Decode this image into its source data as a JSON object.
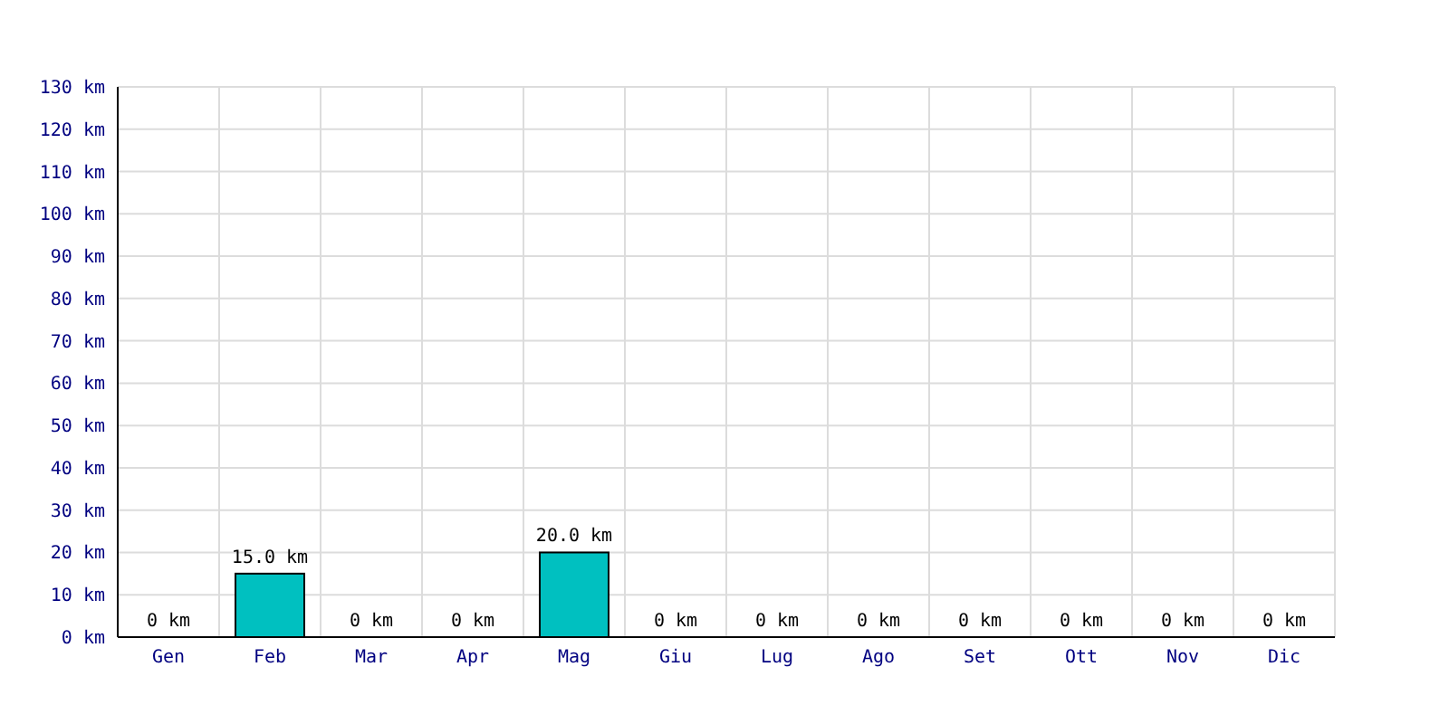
{
  "chart_data": {
    "type": "bar",
    "categories": [
      "Gen",
      "Feb",
      "Mar",
      "Apr",
      "Mag",
      "Giu",
      "Lug",
      "Ago",
      "Set",
      "Ott",
      "Nov",
      "Dic"
    ],
    "values": [
      0,
      15,
      0,
      0,
      20,
      0,
      0,
      0,
      0,
      0,
      0,
      0
    ],
    "color": "#00c0c0",
    "value_labels": [
      "0 km",
      "15.0 km",
      "0 km",
      "0 km",
      "20.0 km",
      "0 km",
      "0 km",
      "0 km",
      "0 km",
      "0 km",
      "0 km",
      "0 km"
    ],
    "ylim": [
      0,
      130
    ],
    "yticks": [
      {
        "value": 0,
        "label": "0 km"
      },
      {
        "value": 10,
        "label": "10 km"
      },
      {
        "value": 20,
        "label": "20 km"
      },
      {
        "value": 30,
        "label": "30 km"
      },
      {
        "value": 40,
        "label": "40 km"
      },
      {
        "value": 50,
        "label": "50 km"
      },
      {
        "value": 60,
        "label": "60 km"
      },
      {
        "value": 70,
        "label": "70 km"
      },
      {
        "value": 80,
        "label": "80 km"
      },
      {
        "value": 90,
        "label": "90 km"
      },
      {
        "value": 100,
        "label": "100 km"
      },
      {
        "value": 110,
        "label": "110 km"
      },
      {
        "value": 120,
        "label": "120 km"
      },
      {
        "value": 130,
        "label": "130 km"
      }
    ],
    "grid": true
  }
}
